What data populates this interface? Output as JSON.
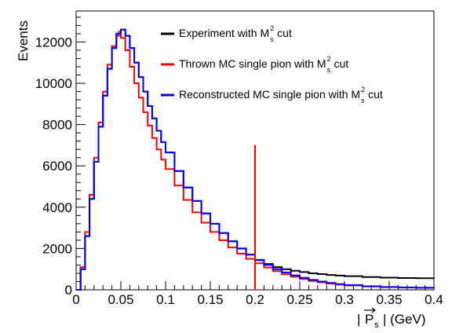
{
  "chart_data": {
    "type": "line",
    "style": "histogram-step",
    "xlabel_prefix": "|",
    "xlabel_var": "P",
    "xlabel_sub": "s",
    "xlabel_suffix": "| (GeV)",
    "ylabel": "Events",
    "xlim": [
      0,
      0.4
    ],
    "ylim": [
      0,
      13500
    ],
    "xticks": [
      0,
      0.05,
      0.1,
      0.15,
      0.2,
      0.25,
      0.3,
      0.35,
      0.4
    ],
    "xtick_labels": [
      "0",
      "0.05",
      "0.1",
      "0.15",
      "0.2",
      "0.25",
      "0.3",
      "0.35",
      "0.4"
    ],
    "yticks": [
      0,
      2000,
      4000,
      6000,
      8000,
      10000,
      12000
    ],
    "ytick_labels": [
      "0",
      "2000",
      "4000",
      "6000",
      "8000",
      "10000",
      "12000"
    ],
    "grid": false,
    "legend_position": "top-right",
    "legend": [
      {
        "text": "Experiment with M",
        "sup": "2",
        "sub": "s",
        "suffix": "cut",
        "color": "#000000"
      },
      {
        "text": "Thrown MC single pion with M",
        "sup": "2",
        "sub": "s",
        "suffix": "cut",
        "color": "#ff0000"
      },
      {
        "text": "Reconstructed MC single pion with M",
        "sup": "2",
        "sub": "s",
        "suffix": "cut",
        "color": "#0000ff"
      }
    ],
    "cut_line": {
      "x": 0.2,
      "y_top": 7000,
      "color": "#ff0000"
    },
    "series": [
      {
        "color": "#000000",
        "points": [
          [
            0,
            0
          ],
          [
            0.005,
            1000
          ],
          [
            0.01,
            2600
          ],
          [
            0.015,
            4400
          ],
          [
            0.02,
            6200
          ],
          [
            0.025,
            7900
          ],
          [
            0.03,
            9400
          ],
          [
            0.035,
            10700
          ],
          [
            0.04,
            11700
          ],
          [
            0.045,
            12400
          ],
          [
            0.05,
            12600
          ],
          [
            0.055,
            12300
          ],
          [
            0.06,
            11700
          ],
          [
            0.065,
            11000
          ],
          [
            0.07,
            10300
          ],
          [
            0.075,
            9600
          ],
          [
            0.08,
            8900
          ],
          [
            0.085,
            8300
          ],
          [
            0.09,
            7700
          ],
          [
            0.095,
            7150
          ],
          [
            0.1,
            6650
          ],
          [
            0.11,
            5750
          ],
          [
            0.12,
            4950
          ],
          [
            0.13,
            4300
          ],
          [
            0.14,
            3700
          ],
          [
            0.15,
            3200
          ],
          [
            0.16,
            2750
          ],
          [
            0.17,
            2350
          ],
          [
            0.18,
            2000
          ],
          [
            0.19,
            1700
          ],
          [
            0.2,
            1450
          ],
          [
            0.21,
            1250
          ],
          [
            0.22,
            1100
          ],
          [
            0.23,
            1000
          ],
          [
            0.24,
            920
          ],
          [
            0.25,
            860
          ],
          [
            0.26,
            800
          ],
          [
            0.27,
            760
          ],
          [
            0.28,
            720
          ],
          [
            0.29,
            690
          ],
          [
            0.3,
            660
          ],
          [
            0.32,
            620
          ],
          [
            0.34,
            590
          ],
          [
            0.36,
            570
          ],
          [
            0.38,
            560
          ],
          [
            0.4,
            550
          ]
        ]
      },
      {
        "color": "#ff0000",
        "points": [
          [
            0,
            0
          ],
          [
            0.005,
            1100
          ],
          [
            0.01,
            2800
          ],
          [
            0.015,
            4600
          ],
          [
            0.02,
            6400
          ],
          [
            0.025,
            8100
          ],
          [
            0.03,
            9600
          ],
          [
            0.035,
            10900
          ],
          [
            0.04,
            11800
          ],
          [
            0.045,
            12300
          ],
          [
            0.048,
            12500
          ],
          [
            0.05,
            12200
          ],
          [
            0.055,
            11600
          ],
          [
            0.06,
            10800
          ],
          [
            0.065,
            10000
          ],
          [
            0.07,
            9300
          ],
          [
            0.075,
            8600
          ],
          [
            0.08,
            7950
          ],
          [
            0.085,
            7350
          ],
          [
            0.09,
            6800
          ],
          [
            0.095,
            6300
          ],
          [
            0.1,
            5850
          ],
          [
            0.11,
            5050
          ],
          [
            0.12,
            4350
          ],
          [
            0.13,
            3750
          ],
          [
            0.14,
            3250
          ],
          [
            0.15,
            2800
          ],
          [
            0.16,
            2400
          ],
          [
            0.17,
            2050
          ],
          [
            0.18,
            1750
          ],
          [
            0.19,
            1500
          ],
          [
            0.2,
            1280
          ],
          [
            0.21,
            1080
          ],
          [
            0.22,
            900
          ],
          [
            0.23,
            750
          ],
          [
            0.24,
            630
          ],
          [
            0.25,
            520
          ],
          [
            0.26,
            430
          ],
          [
            0.27,
            360
          ],
          [
            0.28,
            300
          ],
          [
            0.29,
            250
          ],
          [
            0.3,
            210
          ],
          [
            0.32,
            160
          ],
          [
            0.34,
            130
          ],
          [
            0.36,
            110
          ],
          [
            0.38,
            100
          ],
          [
            0.4,
            90
          ]
        ]
      },
      {
        "color": "#0000ff",
        "points": [
          [
            0,
            0
          ],
          [
            0.005,
            1000
          ],
          [
            0.01,
            2600
          ],
          [
            0.015,
            4400
          ],
          [
            0.02,
            6200
          ],
          [
            0.025,
            7900
          ],
          [
            0.03,
            9400
          ],
          [
            0.035,
            10700
          ],
          [
            0.04,
            11700
          ],
          [
            0.045,
            12400
          ],
          [
            0.05,
            12600
          ],
          [
            0.055,
            12300
          ],
          [
            0.06,
            11700
          ],
          [
            0.065,
            11000
          ],
          [
            0.07,
            10300
          ],
          [
            0.075,
            9600
          ],
          [
            0.08,
            8900
          ],
          [
            0.085,
            8300
          ],
          [
            0.09,
            7700
          ],
          [
            0.095,
            7150
          ],
          [
            0.1,
            6650
          ],
          [
            0.11,
            5750
          ],
          [
            0.12,
            4950
          ],
          [
            0.13,
            4300
          ],
          [
            0.14,
            3700
          ],
          [
            0.15,
            3200
          ],
          [
            0.16,
            2750
          ],
          [
            0.17,
            2350
          ],
          [
            0.18,
            2000
          ],
          [
            0.19,
            1700
          ],
          [
            0.2,
            1430
          ],
          [
            0.21,
            1200
          ],
          [
            0.22,
            1000
          ],
          [
            0.23,
            840
          ],
          [
            0.24,
            700
          ],
          [
            0.25,
            580
          ],
          [
            0.26,
            480
          ],
          [
            0.27,
            400
          ],
          [
            0.28,
            330
          ],
          [
            0.29,
            275
          ],
          [
            0.3,
            230
          ],
          [
            0.32,
            170
          ],
          [
            0.34,
            135
          ],
          [
            0.36,
            115
          ],
          [
            0.38,
            100
          ],
          [
            0.4,
            90
          ]
        ]
      }
    ]
  }
}
